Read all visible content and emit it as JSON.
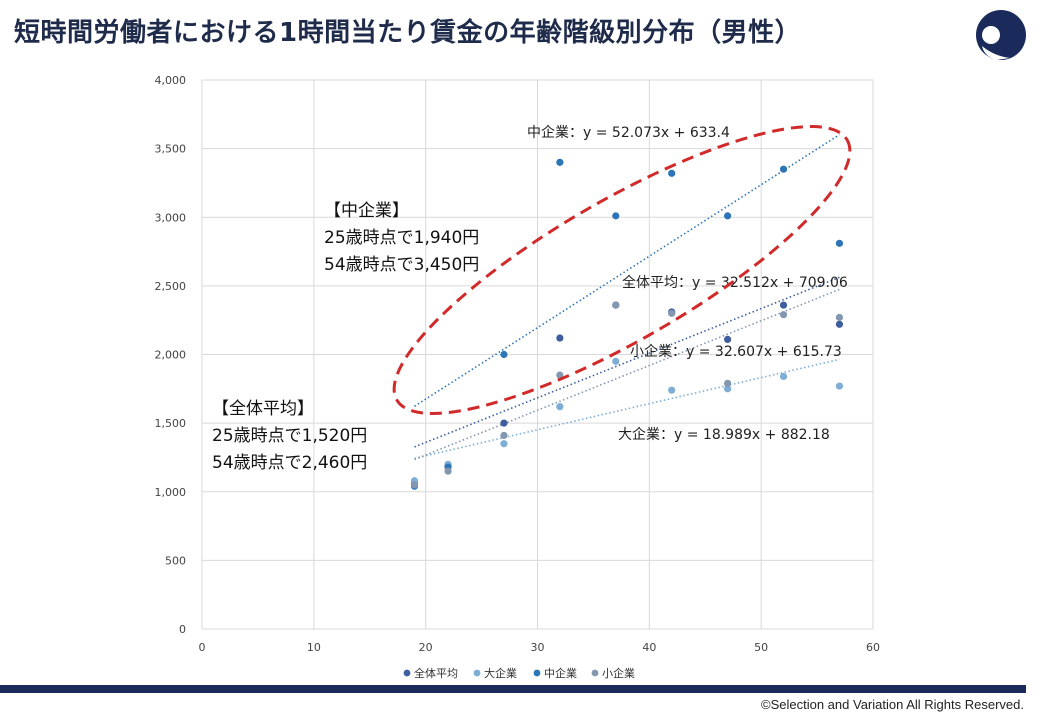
{
  "title": "短時間労働者における1時間当たり賃金の年齢階級別分布（男性）",
  "copyright": "©Selection and Variation All Rights Reserved.",
  "notes": {
    "mid": [
      "【中企業】",
      "25歳時点で1,940円",
      "54歳時点で3,450円"
    ],
    "all": [
      "【全体平均】",
      "25歳時点で1,520円",
      "54歳時点で2,460円"
    ]
  },
  "colors": {
    "all": "#3e5e9e",
    "large": "#7eaed6",
    "mid": "#2e75b6",
    "small": "#8497b0",
    "ellipse": "#d12a2a",
    "brand": "#1a2a5a"
  },
  "chart_data": {
    "type": "scatter",
    "xlim": [
      0,
      60
    ],
    "ylim": [
      0,
      4000
    ],
    "xticks": [
      0,
      10,
      20,
      30,
      40,
      50,
      60
    ],
    "yticks": [
      0,
      500,
      1000,
      1500,
      2000,
      2500,
      3000,
      3500,
      4000
    ],
    "ytick_labels": [
      "0",
      "500",
      "1,000",
      "1,500",
      "2,000",
      "2,500",
      "3,000",
      "3,500",
      "4,000"
    ],
    "series": [
      {
        "key": "all",
        "name": "全体平均",
        "x": [
          19,
          22,
          27,
          32,
          37,
          42,
          47,
          52,
          57
        ],
        "y": [
          1060,
          1190,
          1500,
          2120,
          2360,
          2310,
          2110,
          2360,
          2220
        ],
        "trend": "全体平均：y = 32.512x + 709.06",
        "slope": 32.512,
        "intercept": 709.06
      },
      {
        "key": "large",
        "name": "大企業",
        "x": [
          19,
          22,
          27,
          32,
          37,
          42,
          47,
          52,
          57
        ],
        "y": [
          1080,
          1200,
          1350,
          1620,
          1950,
          1740,
          1750,
          1840,
          1770
        ],
        "trend": "大企業：y = 18.989x + 882.18",
        "slope": 18.989,
        "intercept": 882.18
      },
      {
        "key": "mid",
        "name": "中企業",
        "x": [
          19,
          22,
          27,
          32,
          37,
          42,
          47,
          52,
          57
        ],
        "y": [
          1040,
          1180,
          2000,
          3400,
          3010,
          3320,
          3010,
          3350,
          2810
        ],
        "trend": "中企業：y = 52.073x + 633.4",
        "slope": 52.073,
        "intercept": 633.4
      },
      {
        "key": "small",
        "name": "小企業",
        "x": [
          19,
          22,
          27,
          32,
          37,
          42,
          47,
          52,
          57
        ],
        "y": [
          1050,
          1150,
          1410,
          1850,
          2360,
          2300,
          1790,
          2290,
          2270
        ],
        "trend": "小企業：y = 32.607x + 615.73",
        "slope": 32.607,
        "intercept": 615.73
      }
    ]
  }
}
